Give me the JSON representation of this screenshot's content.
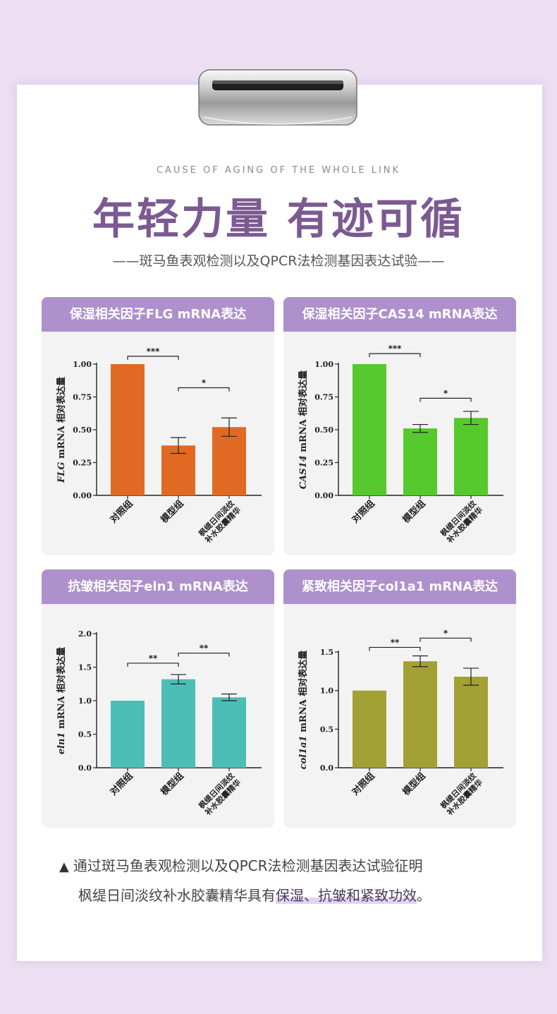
{
  "header": {
    "subtitle_en": "CAUSE OF AGING OF THE WHOLE LINK",
    "title": "年轻力量 有迹可循",
    "subtitle": "——斑马鱼表观检测以及QPCR法检测基因表达试验——"
  },
  "colors": {
    "background": "#ecdff2",
    "title": "#7b5a92",
    "panel_header": "#ae90cc",
    "panel_bg": "#f3f3f3"
  },
  "chart_data": [
    {
      "type": "bar",
      "title": "保湿相关因子FLG mRNA表达",
      "ylabel_italic": "FLG",
      "ylabel_rest": " mRNA 相对表达量",
      "categories": [
        "对照组",
        "模型组",
        "枫缇日间淡纹补水胶囊精华"
      ],
      "category_lines": [
        [
          "对照组"
        ],
        [
          "模型组"
        ],
        [
          "枫缇日间淡纹",
          "补水胶囊精华"
        ]
      ],
      "values": [
        1.0,
        0.38,
        0.52
      ],
      "errors": [
        0,
        0.06,
        0.07
      ],
      "color": "#e06a24",
      "ylim": [
        0,
        1.0
      ],
      "yticks": [
        "0.00",
        "0.25",
        "0.50",
        "0.75",
        "1.00"
      ],
      "ytick_values": [
        0,
        0.25,
        0.5,
        0.75,
        1.0
      ],
      "significance": [
        {
          "from": 0,
          "to": 1,
          "label": "***",
          "level": 1.06
        },
        {
          "from": 1,
          "to": 2,
          "label": "*",
          "level": 0.82
        }
      ]
    },
    {
      "type": "bar",
      "title": "保湿相关因子CAS14 mRNA表达",
      "ylabel_italic": "CAS14",
      "ylabel_rest": " mRNA 相对表达量",
      "categories": [
        "对照组",
        "模型组",
        "枫缇日间淡纹补水胶囊精华"
      ],
      "category_lines": [
        [
          "对照组"
        ],
        [
          "模型组"
        ],
        [
          "枫缇日间淡纹",
          "补水胶囊精华"
        ]
      ],
      "values": [
        1.0,
        0.51,
        0.59
      ],
      "errors": [
        0,
        0.03,
        0.05
      ],
      "color": "#56c92c",
      "ylim": [
        0,
        1.0
      ],
      "yticks": [
        "0.00",
        "0.25",
        "0.50",
        "0.75",
        "1.00"
      ],
      "ytick_values": [
        0,
        0.25,
        0.5,
        0.75,
        1.0
      ],
      "significance": [
        {
          "from": 0,
          "to": 1,
          "label": "***",
          "level": 1.08
        },
        {
          "from": 1,
          "to": 2,
          "label": "*",
          "level": 0.74
        }
      ]
    },
    {
      "type": "bar",
      "title": "抗皱相关因子eln1 mRNA表达",
      "ylabel_italic": "eln1",
      "ylabel_rest": " mRNA 相对表达量",
      "categories": [
        "对照组",
        "模型组",
        "枫缇日间淡纹补水胶囊精华"
      ],
      "category_lines": [
        [
          "对照组"
        ],
        [
          "模型组"
        ],
        [
          "枫缇日间淡纹",
          "补水胶囊精华"
        ]
      ],
      "values": [
        1.0,
        1.32,
        1.05
      ],
      "errors": [
        0,
        0.07,
        0.05
      ],
      "color": "#4bbfb6",
      "ylim": [
        0,
        2.0
      ],
      "yticks": [
        "0.0",
        "0.5",
        "1.0",
        "1.5",
        "2.0"
      ],
      "ytick_values": [
        0,
        0.5,
        1.0,
        1.5,
        2.0
      ],
      "significance": [
        {
          "from": 0,
          "to": 1,
          "label": "**",
          "level": 1.56
        },
        {
          "from": 1,
          "to": 2,
          "label": "**",
          "level": 1.71
        }
      ]
    },
    {
      "type": "bar",
      "title": "紧致相关因子col1a1 mRNA表达",
      "ylabel_italic": "col1a1",
      "ylabel_rest": " mRNA 相对表达量",
      "categories": [
        "对照组",
        "模型组",
        "枫缇日间淡纹补水胶囊精华"
      ],
      "category_lines": [
        [
          "对照组"
        ],
        [
          "模型组"
        ],
        [
          "枫缇日间淡纹",
          "补水胶囊精华"
        ]
      ],
      "values": [
        1.0,
        1.38,
        1.18
      ],
      "errors": [
        0,
        0.07,
        0.11
      ],
      "color": "#a3a034",
      "ylim": [
        0,
        1.5
      ],
      "yticks": [
        "0.0",
        "0.5",
        "1.0",
        "1.5"
      ],
      "ytick_values": [
        0,
        0.5,
        1.0,
        1.5
      ],
      "significance": [
        {
          "from": 0,
          "to": 1,
          "label": "**",
          "level": 1.56
        },
        {
          "from": 1,
          "to": 2,
          "label": "*",
          "level": 1.68
        }
      ]
    }
  ],
  "note": {
    "marker": "▲",
    "line1": "通过斑马鱼表观检测以及QPCR法检测基因表达试验征明",
    "line2_prefix": "枫缇日间淡纹补水胶囊精华具有",
    "line2_highlight": "保湿、抗皱和紧致功效",
    "line2_suffix": "。"
  }
}
